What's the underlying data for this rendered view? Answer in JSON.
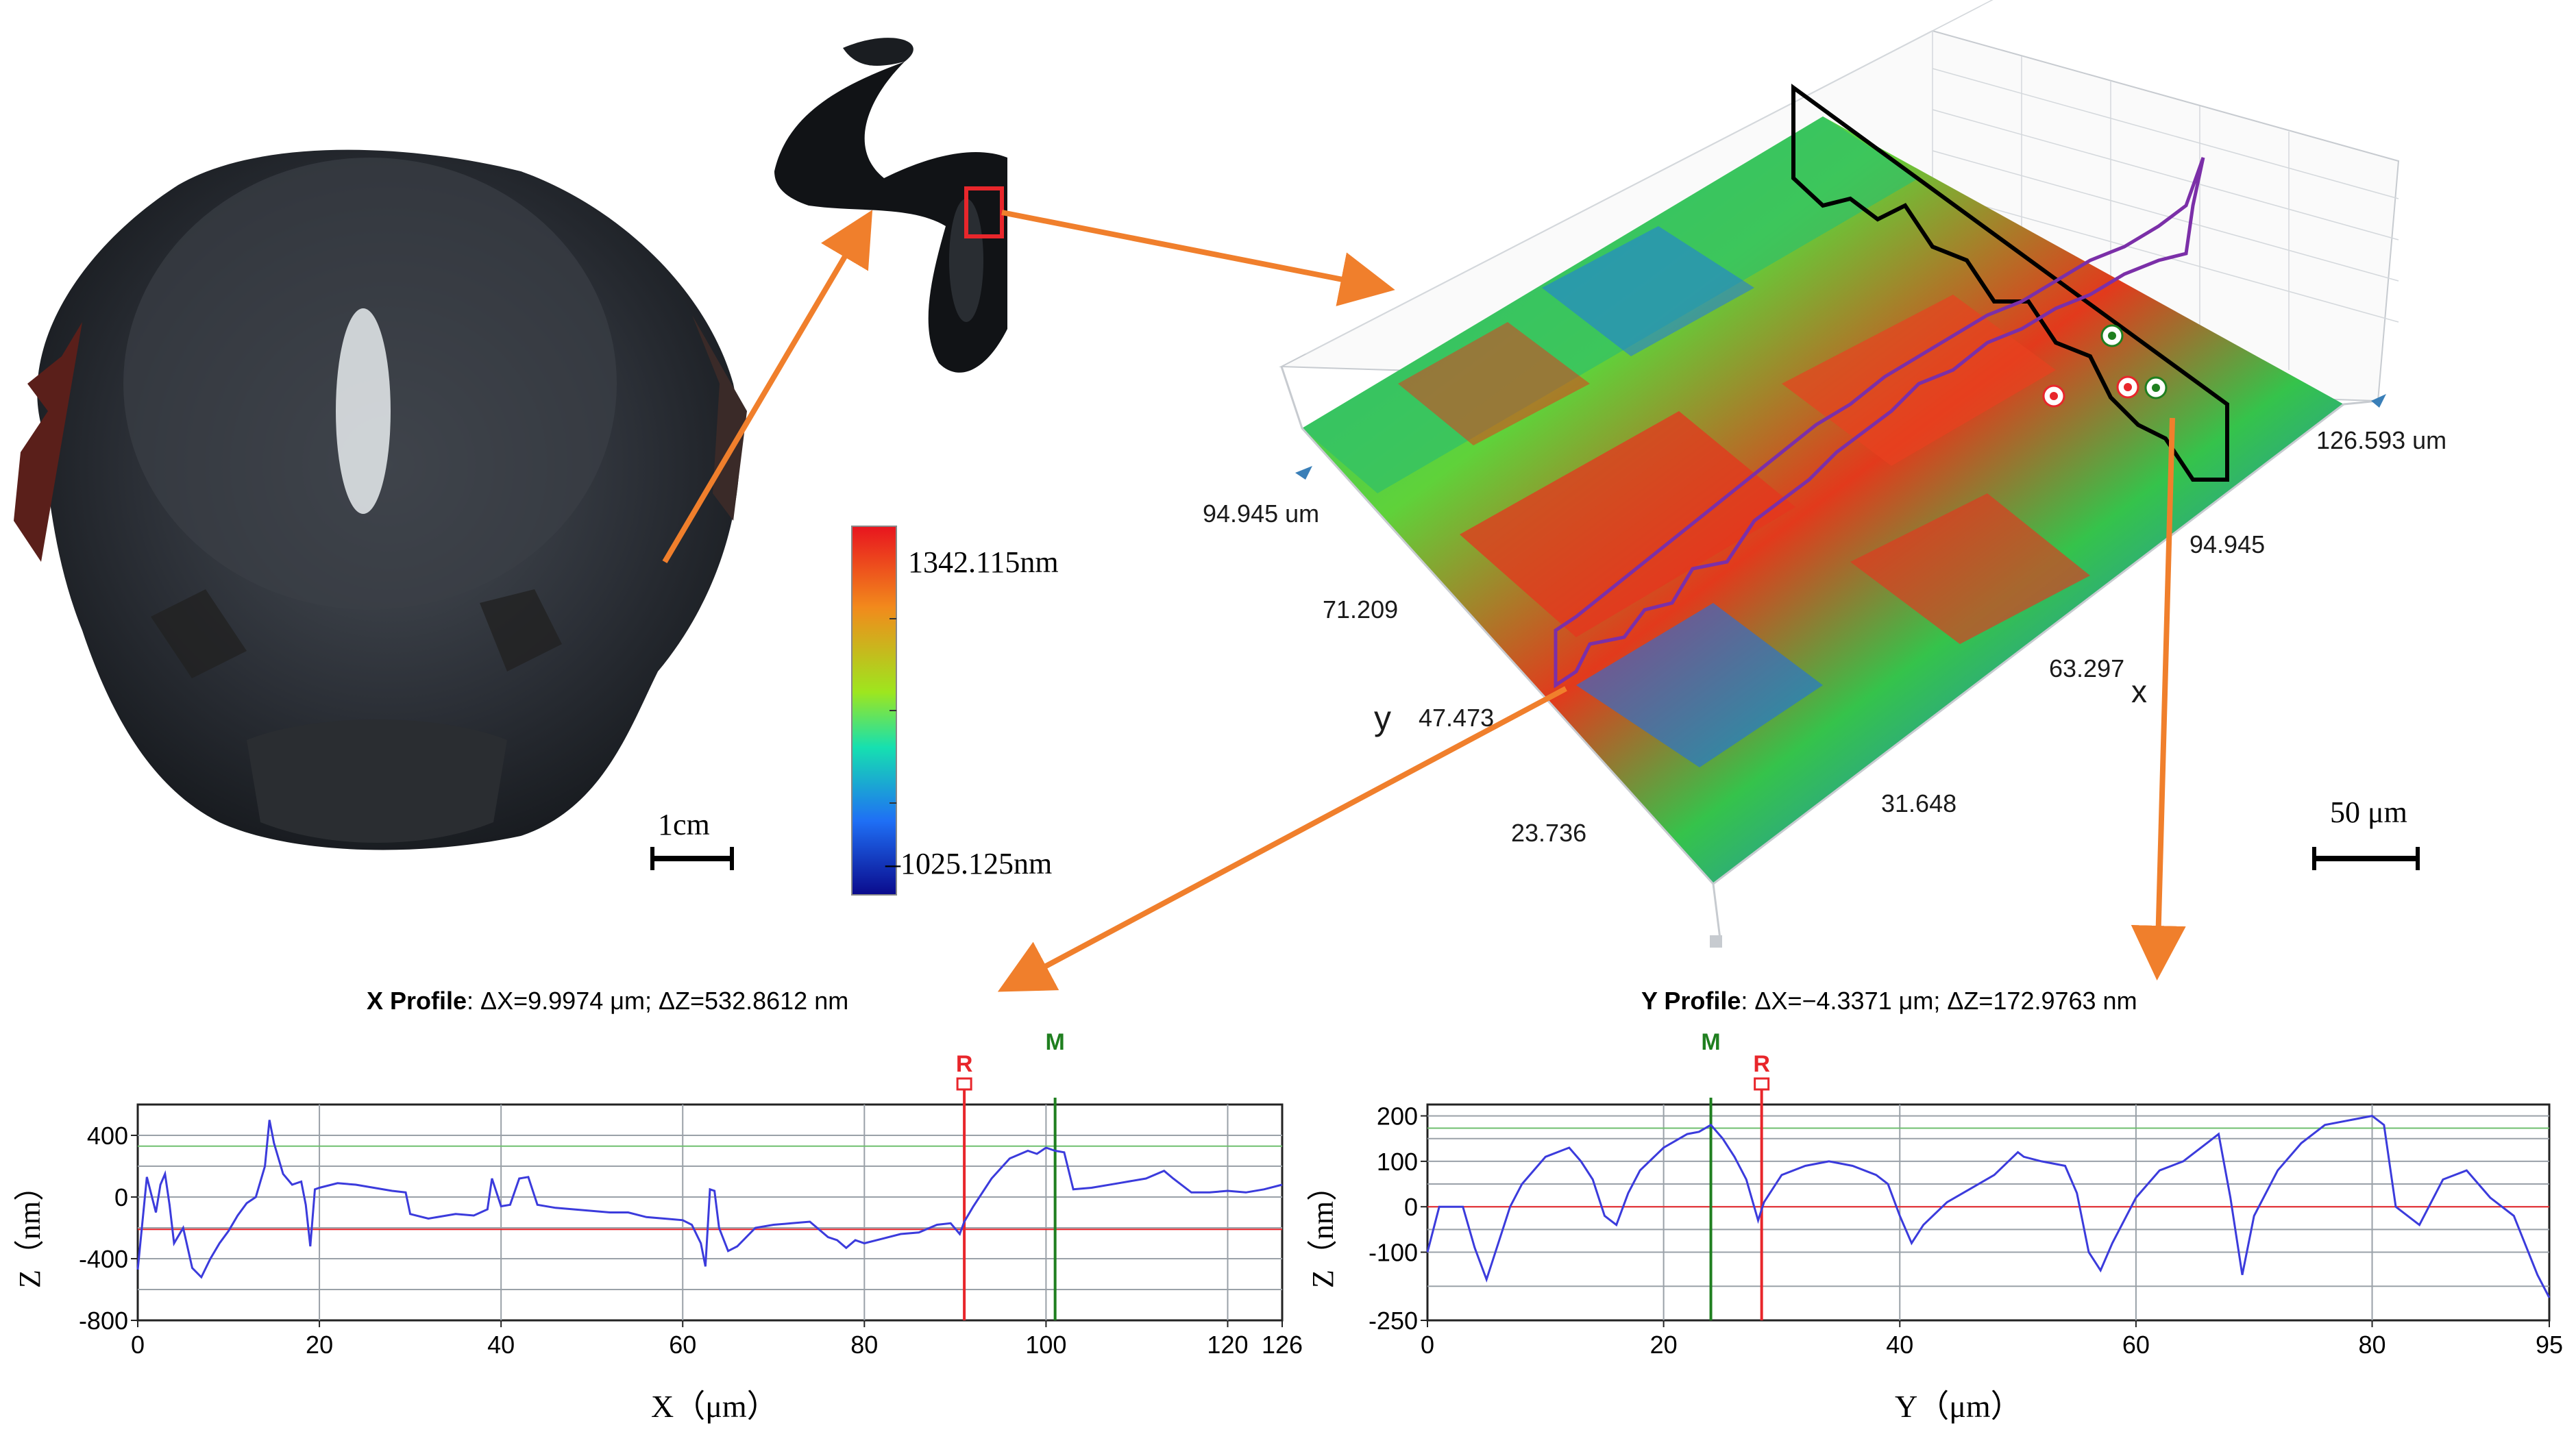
{
  "colors": {
    "arrow": "#f07f2c",
    "profile_line": "#3b3bdc",
    "ref_line": "#e8262b",
    "marker_line": "#1f7f1f",
    "grid": "#9aa1a8",
    "purple_path": "#7b2fa8",
    "black_path": "#000000"
  },
  "colorbar": {
    "max_label": "1342.115nm",
    "min_label": "–1025.125nm"
  },
  "scale_bars": {
    "head": "1cm",
    "surface": "50 μm"
  },
  "surface_axes": {
    "x_name": "x",
    "y_name": "y",
    "x_extent": "126.593 um",
    "y_extent": "94.945 um",
    "x_ticks": [
      "31.648",
      "63.297",
      "94.945"
    ],
    "y_ticks": [
      "23.736",
      "47.473",
      "71.209"
    ]
  },
  "x_profile": {
    "title_bold": "X Profile",
    "title_rest": ": ΔX=9.9974 μm; ΔZ=532.8612 nm",
    "ylabel": "Z（nm）",
    "xlabel": "X（μm）",
    "r_label": "R",
    "m_label": "M"
  },
  "y_profile": {
    "title_bold": "Y Profile",
    "title_rest": ": ΔX=−4.3371 μm; ΔZ=172.9763 nm",
    "ylabel": "Z（nm）",
    "xlabel": "Y（μm）",
    "r_label": "R",
    "m_label": "M"
  },
  "chart_data": [
    {
      "type": "line",
      "title": "X Profile: ΔX=9.9974 μm; ΔZ=532.8612 nm",
      "xlabel": "X（μm）",
      "ylabel": "Z（nm）",
      "xlim": [
        0,
        126
      ],
      "ylim": [
        -800,
        600
      ],
      "xticks": [
        0,
        20,
        40,
        60,
        80,
        100,
        120,
        126
      ],
      "yticks": [
        -800,
        -400,
        0,
        400
      ],
      "ref_line_R": {
        "x": 91,
        "y": -210
      },
      "marker_line_M": {
        "x": 101,
        "y": 330
      },
      "series": [
        {
          "name": "X Profile",
          "x": [
            0,
            1,
            2,
            2.5,
            3,
            3.5,
            4,
            5,
            6,
            7,
            8,
            9,
            10,
            11,
            12,
            13,
            14,
            14.5,
            15,
            16,
            17,
            18,
            18.5,
            19,
            19.5,
            20,
            22,
            24,
            26,
            28,
            29.5,
            30,
            32,
            35,
            37,
            38.5,
            39,
            40,
            41,
            42,
            43,
            44,
            46,
            48,
            50,
            52,
            54,
            56,
            58,
            60,
            61,
            62,
            62.5,
            63,
            63.5,
            64,
            65,
            66,
            68,
            70,
            72,
            74,
            76,
            77,
            78,
            79,
            80,
            82,
            84,
            86,
            88,
            89.5,
            90.5,
            91,
            92,
            94,
            96,
            98,
            99,
            100,
            101,
            102,
            103,
            105,
            108,
            111,
            113,
            114,
            116,
            118,
            120,
            122,
            124,
            126
          ],
          "values": [
            -470,
            130,
            -100,
            80,
            150,
            -50,
            -300,
            -200,
            -460,
            -520,
            -400,
            -300,
            -220,
            -120,
            -40,
            0,
            200,
            500,
            350,
            150,
            80,
            100,
            -50,
            -320,
            50,
            60,
            90,
            80,
            60,
            40,
            30,
            -110,
            -140,
            -110,
            -120,
            -80,
            120,
            -60,
            -50,
            120,
            130,
            -50,
            -70,
            -80,
            -90,
            -100,
            -100,
            -130,
            -140,
            -150,
            -180,
            -300,
            -450,
            50,
            40,
            -200,
            -350,
            -320,
            -200,
            -180,
            -170,
            -160,
            -260,
            -280,
            -330,
            -280,
            -300,
            -270,
            -240,
            -230,
            -180,
            -170,
            -240,
            -160,
            -60,
            120,
            250,
            300,
            280,
            320,
            300,
            290,
            50,
            60,
            90,
            120,
            170,
            120,
            30,
            30,
            40,
            30,
            50,
            80
          ]
        }
      ]
    },
    {
      "type": "line",
      "title": "Y Profile: ΔX=−4.3371 μm; ΔZ=172.9763 nm",
      "xlabel": "Y（μm）",
      "ylabel": "Z（nm）",
      "xlim": [
        0,
        95
      ],
      "ylim": [
        -250,
        225
      ],
      "xticks": [
        0,
        20,
        40,
        60,
        80,
        95
      ],
      "yticks": [
        -250,
        -100,
        0,
        100,
        200
      ],
      "ref_line_R": {
        "x": 28.3,
        "y": 0
      },
      "marker_line_M": {
        "x": 24,
        "y": 173
      },
      "series": [
        {
          "name": "Y Profile",
          "x": [
            0,
            1,
            3,
            4,
            5,
            6,
            7,
            8,
            10,
            12,
            13,
            14,
            15,
            16,
            17,
            18,
            20,
            22,
            23,
            24,
            25,
            26,
            27,
            28,
            28.5,
            30,
            32,
            34,
            36,
            38,
            39,
            40,
            41,
            42,
            44,
            46,
            48,
            50,
            50.5,
            52,
            54,
            55,
            56,
            57,
            58,
            60,
            62,
            64,
            66,
            67,
            68,
            69,
            70,
            72,
            74,
            76,
            78,
            80,
            81,
            82,
            84,
            86,
            88,
            90,
            92,
            94,
            95
          ],
          "values": [
            -100,
            0,
            0,
            -90,
            -160,
            -80,
            0,
            50,
            110,
            130,
            100,
            60,
            -20,
            -40,
            30,
            80,
            130,
            160,
            165,
            180,
            150,
            110,
            60,
            -30,
            10,
            70,
            90,
            100,
            90,
            70,
            50,
            -20,
            -80,
            -40,
            10,
            40,
            70,
            120,
            110,
            100,
            90,
            30,
            -100,
            -140,
            -80,
            20,
            80,
            100,
            140,
            160,
            20,
            -150,
            -20,
            80,
            140,
            180,
            190,
            200,
            180,
            0,
            -40,
            60,
            80,
            20,
            -20,
            -150,
            -200
          ]
        }
      ]
    }
  ]
}
